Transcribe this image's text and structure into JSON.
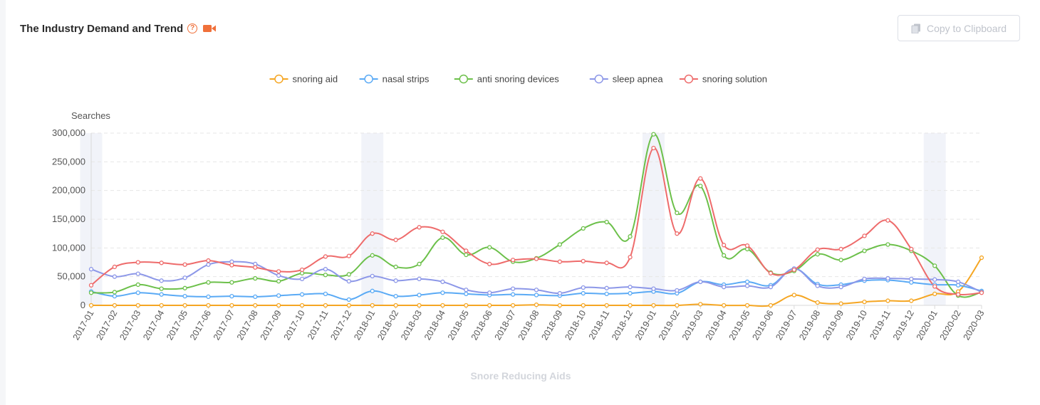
{
  "header": {
    "title": "The Industry Demand and Trend",
    "help_glyph": "?",
    "copy_label": "Copy to Clipboard"
  },
  "icons": {
    "help": "question-circle-icon",
    "video": "video-camera-icon",
    "copy": "copy-icon"
  },
  "colors": {
    "accent": "#f0703a",
    "grid": "#e6e6e6",
    "highlight_band": "#f1f3f9"
  },
  "chart_data": {
    "type": "line",
    "title": "The Industry Demand and Trend",
    "xlabel": "Snore Reducing Aids",
    "ylabel": "Searches",
    "ylim": [
      0,
      300000
    ],
    "yticks": [
      0,
      50000,
      100000,
      150000,
      200000,
      250000,
      300000
    ],
    "ytick_labels": [
      "0",
      "50,000",
      "100,000",
      "150,000",
      "200,000",
      "250,000",
      "300,000"
    ],
    "grid": true,
    "legend_position": "top-center",
    "highlighted_categories": [
      "2017-01",
      "2018-01",
      "2019-01",
      "2020-01"
    ],
    "categories": [
      "2017-01",
      "2017-02",
      "2017-03",
      "2017-04",
      "2017-05",
      "2017-06",
      "2017-07",
      "2017-08",
      "2017-09",
      "2017-10",
      "2017-11",
      "2017-12",
      "2018-01",
      "2018-02",
      "2018-03",
      "2018-04",
      "2018-05",
      "2018-06",
      "2018-07",
      "2018-08",
      "2018-09",
      "2018-10",
      "2018-11",
      "2018-12",
      "2019-01",
      "2019-02",
      "2019-03",
      "2019-04",
      "2019-05",
      "2019-06",
      "2019-07",
      "2019-08",
      "2019-09",
      "2019-10",
      "2019-11",
      "2019-12",
      "2020-01",
      "2020-02",
      "2020-03"
    ],
    "series": [
      {
        "name": "snoring aid",
        "color": "#f5a623",
        "values": [
          0,
          0,
          0,
          0,
          0,
          0,
          0,
          0,
          0,
          0,
          0,
          0,
          0,
          0,
          0,
          0,
          0,
          0,
          0,
          1000,
          0,
          0,
          0,
          0,
          0,
          0,
          2000,
          0,
          0,
          0,
          18000,
          5000,
          3000,
          6000,
          8000,
          8000,
          20000,
          24000,
          83000
        ]
      },
      {
        "name": "nasal strips",
        "color": "#5aaaf5",
        "values": [
          24000,
          16000,
          22000,
          19000,
          16000,
          15000,
          16000,
          15000,
          17000,
          19000,
          20000,
          10000,
          25000,
          16000,
          18000,
          22000,
          20000,
          18000,
          19000,
          18000,
          17000,
          21000,
          20000,
          21000,
          24000,
          21000,
          41000,
          36000,
          41000,
          35000,
          64000,
          37000,
          36000,
          43000,
          44000,
          40000,
          36000,
          35000,
          25000
        ]
      },
      {
        "name": "anti snoring devices",
        "color": "#6cc04a",
        "values": [
          22000,
          23000,
          36000,
          29000,
          30000,
          40000,
          40000,
          47000,
          42000,
          56000,
          53000,
          54000,
          87000,
          67000,
          72000,
          118000,
          88000,
          101000,
          76000,
          82000,
          106000,
          134000,
          145000,
          120000,
          298000,
          161000,
          208000,
          87000,
          98000,
          57000,
          60000,
          89000,
          79000,
          95000,
          106000,
          95000,
          69000,
          17000,
          23000
        ]
      },
      {
        "name": "sleep apnea",
        "color": "#8c97e8",
        "values": [
          63000,
          50000,
          55000,
          43000,
          48000,
          71000,
          76000,
          72000,
          52000,
          46000,
          63000,
          42000,
          51000,
          43000,
          46000,
          41000,
          27000,
          22000,
          29000,
          27000,
          21000,
          31000,
          30000,
          32000,
          29000,
          26000,
          41000,
          32000,
          34000,
          32000,
          64000,
          34000,
          32000,
          46000,
          47000,
          46000,
          45000,
          41000,
          23000
        ]
      },
      {
        "name": "snoring solution",
        "color": "#ee6b6b",
        "values": [
          35000,
          67000,
          75000,
          74000,
          71000,
          78000,
          70000,
          66000,
          59000,
          62000,
          85000,
          86000,
          125000,
          114000,
          136000,
          128000,
          95000,
          72000,
          79000,
          81000,
          76000,
          77000,
          74000,
          84000,
          274000,
          125000,
          221000,
          105000,
          104000,
          56000,
          62000,
          97000,
          98000,
          121000,
          148000,
          98000,
          33000,
          19000,
          22000
        ]
      }
    ]
  }
}
